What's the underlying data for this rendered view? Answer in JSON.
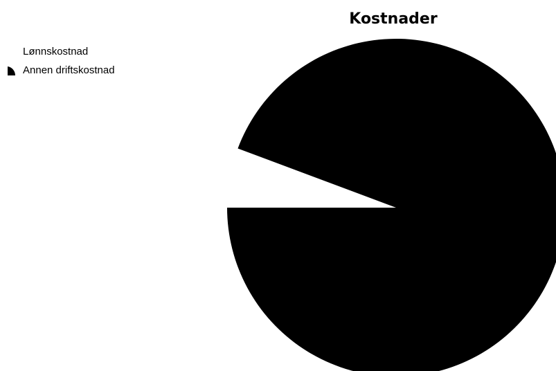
{
  "chart_data": {
    "type": "pie",
    "title": "Kostnader",
    "categories": [
      "Lønnskostnad",
      "Annen driftskostnad"
    ],
    "values": [
      5.7,
      94.3
    ],
    "colors": [
      "#ffffff",
      "#000000"
    ],
    "legend": "top-left"
  }
}
